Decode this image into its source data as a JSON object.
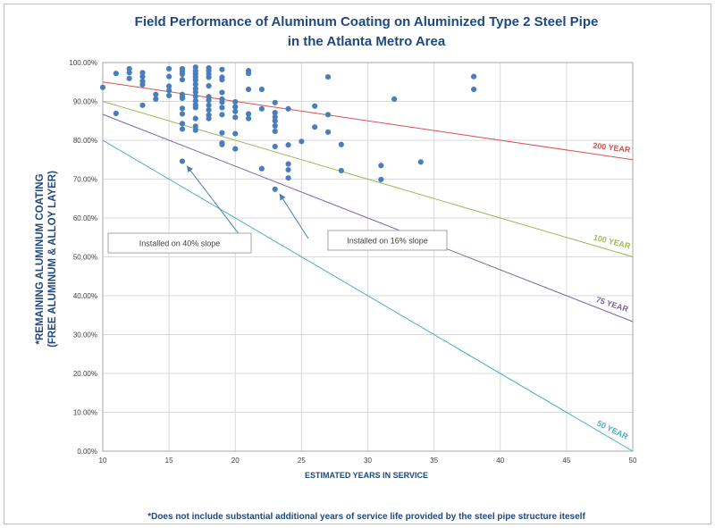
{
  "chart_data": {
    "type": "scatter",
    "title": "Field Performance of Aluminum Coating on Aluminized Type 2 Steel Pipe",
    "subtitle": "in the Atlanta Metro Area",
    "xlabel": "ESTIMATED  YEARS IN SERVICE",
    "ylabel_line1": "*REMAINING ALUMINUM COATING",
    "ylabel_line2": "(FREE ALUMINUM & ALLOY LAYER)",
    "footnote": "*Does not include substantial additional years of service life provided by the steel pipe structure iteself",
    "xlim": [
      10,
      50
    ],
    "ylim": [
      0,
      100
    ],
    "x_ticks": [
      10,
      15,
      20,
      25,
      30,
      35,
      40,
      45,
      50
    ],
    "y_ticks": [
      "0.00%",
      "10.00%",
      "20.00%",
      "30.00%",
      "40.00%",
      "50.00%",
      "60.00%",
      "70.00%",
      "80.00%",
      "90.00%",
      "100.00%"
    ],
    "grid": true,
    "point_color": "#4a7ebb",
    "points": [
      [
        10,
        93.6
      ],
      [
        11,
        97.2
      ],
      [
        11,
        86.9
      ],
      [
        12,
        98.4
      ],
      [
        12,
        97.4
      ],
      [
        12,
        95.9
      ],
      [
        13,
        97.4
      ],
      [
        13,
        96.4
      ],
      [
        13,
        95.2
      ],
      [
        13,
        94.3
      ],
      [
        13,
        89.0
      ],
      [
        14,
        91.8
      ],
      [
        14,
        90.6
      ],
      [
        15,
        98.4
      ],
      [
        15,
        96.4
      ],
      [
        15,
        93.9
      ],
      [
        15,
        92.8
      ],
      [
        15,
        91.5
      ],
      [
        16,
        98.4
      ],
      [
        16,
        97.7
      ],
      [
        16,
        97.0
      ],
      [
        16,
        95.6
      ],
      [
        16,
        91.8
      ],
      [
        16,
        91.2
      ],
      [
        16,
        90.8
      ],
      [
        16,
        88.2
      ],
      [
        16,
        86.8
      ],
      [
        16,
        84.3
      ],
      [
        16,
        82.9
      ],
      [
        16,
        74.6
      ],
      [
        17,
        98.8
      ],
      [
        17,
        97.9
      ],
      [
        17,
        97.1
      ],
      [
        17,
        96.3
      ],
      [
        17,
        95.5
      ],
      [
        17,
        94.4
      ],
      [
        17,
        93.3
      ],
      [
        17,
        92.4
      ],
      [
        17,
        91.3
      ],
      [
        17,
        90.2
      ],
      [
        17,
        89.1
      ],
      [
        17,
        88.4
      ],
      [
        17,
        85.6
      ],
      [
        17,
        83.6
      ],
      [
        17,
        82.6
      ],
      [
        18,
        98.6
      ],
      [
        18,
        97.9
      ],
      [
        18,
        97.0
      ],
      [
        18,
        96.2
      ],
      [
        18,
        94.0
      ],
      [
        18,
        91.2
      ],
      [
        18,
        90.3
      ],
      [
        18,
        89.0
      ],
      [
        18,
        87.8
      ],
      [
        18,
        86.5
      ],
      [
        18,
        85.6
      ],
      [
        19,
        98.2
      ],
      [
        19,
        96.2
      ],
      [
        19,
        95.6
      ],
      [
        19,
        92.3
      ],
      [
        19,
        90.6
      ],
      [
        19,
        89.8
      ],
      [
        19,
        88.4
      ],
      [
        19,
        86.6
      ],
      [
        19,
        81.9
      ],
      [
        19,
        79.3
      ],
      [
        19,
        78.9
      ],
      [
        20,
        89.9
      ],
      [
        20,
        88.6
      ],
      [
        20,
        87.4
      ],
      [
        20,
        85.9
      ],
      [
        20,
        81.7
      ],
      [
        20,
        77.8
      ],
      [
        21,
        97.9
      ],
      [
        21,
        97.2
      ],
      [
        21,
        93.1
      ],
      [
        21,
        86.8
      ],
      [
        21,
        85.6
      ],
      [
        22,
        93.1
      ],
      [
        22,
        88.1
      ],
      [
        22,
        72.7
      ],
      [
        23,
        89.7
      ],
      [
        23,
        87.1
      ],
      [
        23,
        86.0
      ],
      [
        23,
        85.0
      ],
      [
        23,
        83.7
      ],
      [
        23,
        82.3
      ],
      [
        23,
        78.4
      ],
      [
        23,
        67.4
      ],
      [
        24,
        88.1
      ],
      [
        24,
        78.8
      ],
      [
        24,
        73.9
      ],
      [
        24,
        72.4
      ],
      [
        24,
        70.3
      ],
      [
        25,
        79.7
      ],
      [
        26,
        88.8
      ],
      [
        26,
        83.4
      ],
      [
        27,
        96.3
      ],
      [
        27,
        86.6
      ],
      [
        27,
        82.1
      ],
      [
        28,
        78.9
      ],
      [
        28,
        72.2
      ],
      [
        31,
        73.5
      ],
      [
        31,
        69.9
      ],
      [
        32,
        90.6
      ],
      [
        34,
        74.4
      ],
      [
        38,
        96.4
      ],
      [
        38,
        93.1
      ]
    ],
    "reference_lines": [
      {
        "name": "200 YEAR",
        "color": "#d94f4f",
        "from": [
          10,
          95
        ],
        "to": [
          50,
          75
        ]
      },
      {
        "name": "100 YEAR",
        "color": "#9bbb59",
        "from": [
          10,
          90
        ],
        "to": [
          50,
          50
        ]
      },
      {
        "name": "75 YEAR",
        "color": "#8064a2",
        "from": [
          10,
          86.67
        ],
        "to": [
          50,
          33.33
        ]
      },
      {
        "name": "50 YEAR",
        "color": "#4bacc6",
        "from": [
          10,
          80
        ],
        "to": [
          50,
          0
        ]
      }
    ],
    "annotations": [
      {
        "text": "Installed on 40% slope",
        "target": [
          16,
          74.6
        ]
      },
      {
        "text": "Installed on 16% slope",
        "target": [
          23,
          67.4
        ]
      }
    ]
  }
}
